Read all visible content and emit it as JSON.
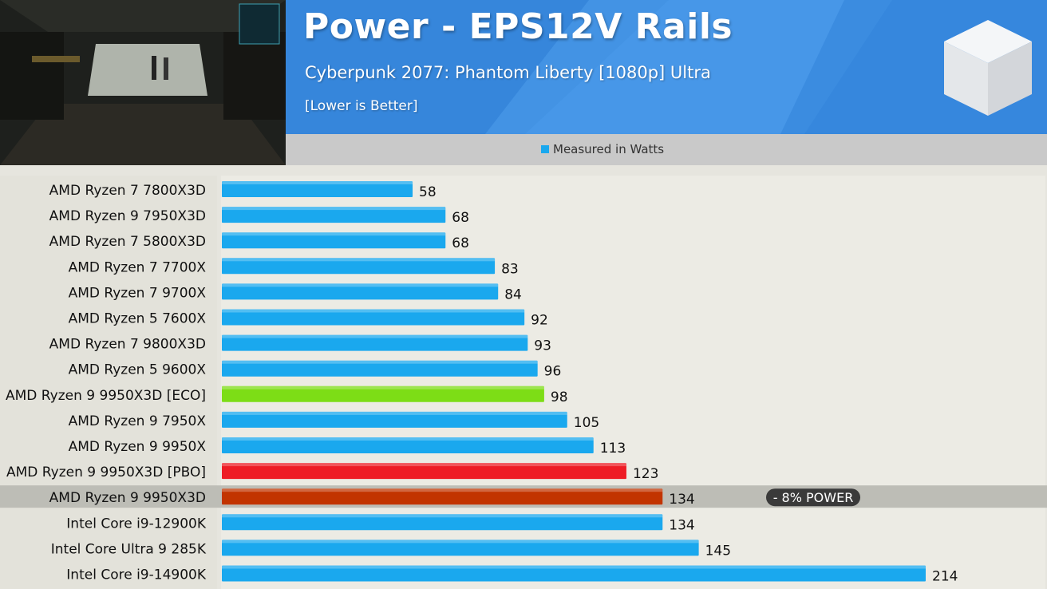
{
  "header": {
    "title": "Power - EPS12V Rails",
    "subtitle": "Cyberpunk 2077: Phantom Liberty [1080p] Ultra",
    "note": "[Lower is Better]"
  },
  "legend": {
    "label": "Measured in Watts",
    "color": "#1aa8ee"
  },
  "callout": "- 8% POWER",
  "colors": {
    "default": "#1aa8ee",
    "eco": "#7ddd16",
    "pbo": "#ee1c25",
    "highlight": "#c23400"
  },
  "chart_data": {
    "type": "bar",
    "orientation": "horizontal",
    "categories": [
      "AMD Ryzen 7 7800X3D",
      "AMD Ryzen 9 7950X3D",
      "AMD Ryzen 7 5800X3D",
      "AMD Ryzen 7 7700X",
      "AMD Ryzen 7 9700X",
      "AMD Ryzen 5 7600X",
      "AMD Ryzen 7 9800X3D",
      "AMD Ryzen 5 9600X",
      "AMD Ryzen 9 9950X3D [ECO]",
      "AMD Ryzen 9 7950X",
      "AMD Ryzen 9 9950X",
      "AMD Ryzen 9 9950X3D [PBO]",
      "AMD Ryzen 9 9950X3D",
      "Intel Core i9-12900K",
      "Intel Core Ultra 9 285K",
      "Intel Core i9-14900K"
    ],
    "series": [
      {
        "values": [
          58,
          68,
          68,
          83,
          84,
          92,
          93,
          96,
          98,
          105,
          113,
          123,
          134,
          134,
          145,
          214
        ]
      }
    ],
    "bar_colors": [
      "default",
      "default",
      "default",
      "default",
      "default",
      "default",
      "default",
      "default",
      "eco",
      "default",
      "default",
      "pbo",
      "highlight",
      "default",
      "default",
      "default"
    ],
    "highlighted_category": "AMD Ryzen 9 9950X3D",
    "xlim": [
      0,
      230
    ],
    "title": "Power - EPS12V Rails",
    "legend_position": "top-center"
  }
}
